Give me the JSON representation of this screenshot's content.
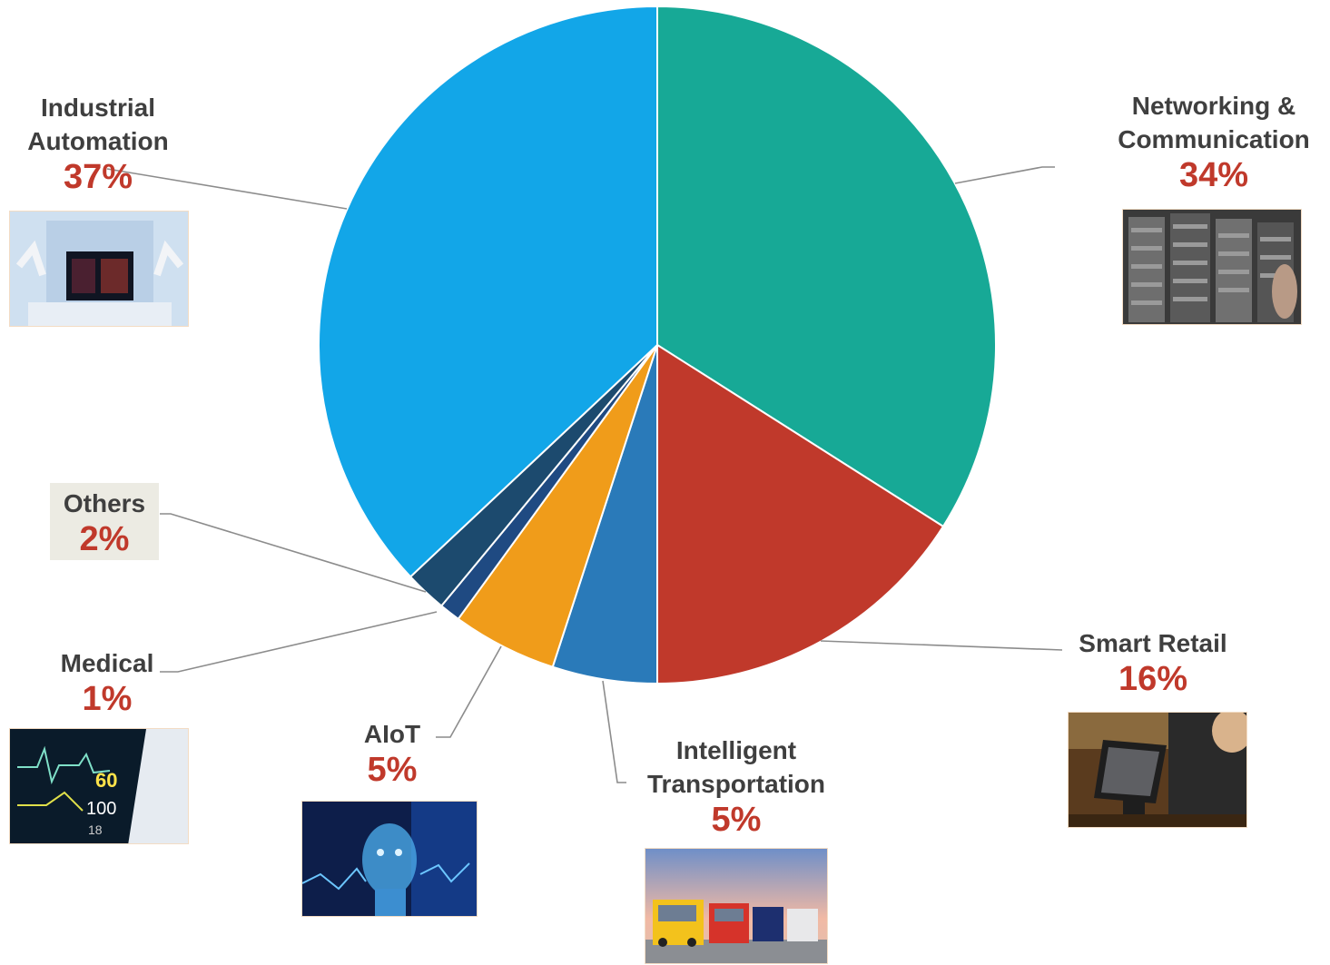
{
  "chart_data": {
    "type": "pie",
    "slices": [
      {
        "label": "Networking & Communication",
        "value": 34,
        "pct_text": "34%",
        "color": "#17a996"
      },
      {
        "label": "Smart Retail",
        "value": 16,
        "pct_text": "16%",
        "color": "#c0392b"
      },
      {
        "label": "Intelligent Transportation",
        "value": 5,
        "pct_text": "5%",
        "color": "#2a7ab9"
      },
      {
        "label": "AIoT",
        "value": 5,
        "pct_text": "5%",
        "color": "#f09c1a"
      },
      {
        "label": "Medical",
        "value": 1,
        "pct_text": "1%",
        "color": "#1f4a82"
      },
      {
        "label": "Others",
        "value": 2,
        "pct_text": "2%",
        "color": "#1c4a6e"
      },
      {
        "label": "Industrial Automation",
        "value": 37,
        "pct_text": "37%",
        "color": "#12a6e8"
      }
    ],
    "start_angle": "12 o'clock",
    "direction": "clockwise"
  },
  "labels": {
    "networking": {
      "line1": "Networking &",
      "line2": "Communication",
      "pct": "34%"
    },
    "retail": {
      "line1": "Smart Retail",
      "pct": "16%"
    },
    "transport": {
      "line1": "Intelligent",
      "line2": "Transportation",
      "pct": "5%"
    },
    "aiot": {
      "line1": "AIoT",
      "pct": "5%"
    },
    "medical": {
      "line1": "Medical",
      "pct": "1%"
    },
    "others": {
      "line1": "Others",
      "pct": "2%"
    },
    "industrial": {
      "line1": "Industrial",
      "line2": "Automation",
      "pct": "37%"
    }
  },
  "colors": {
    "label_text": "#3f3f3f",
    "percent_text": "#c0392b",
    "leader_line": "#8c8c8c"
  },
  "icons": [
    "server-rack-photo",
    "pos-terminal-photo",
    "trucks-photo",
    "ai-head-photo",
    "heart-monitor-photo",
    "robot-lab-photo"
  ]
}
